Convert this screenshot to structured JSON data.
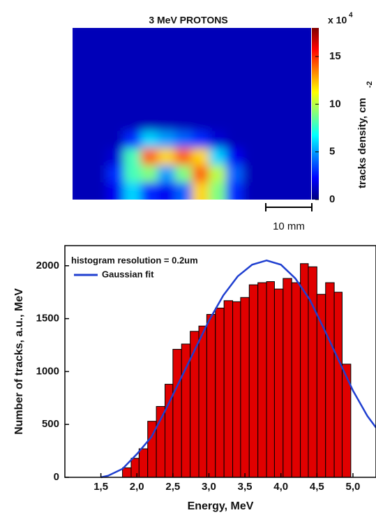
{
  "chart_data": [
    {
      "type": "heatmap",
      "title": "3 MeV PROTONS",
      "colormap": "jet",
      "values": [
        [
          1,
          1,
          1,
          1,
          1,
          1,
          1,
          1,
          1,
          1,
          1,
          1,
          1,
          1
        ],
        [
          1,
          1,
          1,
          1,
          1,
          1,
          1,
          1,
          1,
          1,
          1,
          1,
          1,
          1
        ],
        [
          1,
          1,
          1,
          1,
          1,
          1,
          1,
          1,
          1,
          1,
          1,
          1,
          1,
          1
        ],
        [
          1,
          1,
          1,
          1,
          1,
          1,
          1,
          1,
          1,
          1,
          1,
          1,
          1,
          1
        ],
        [
          1,
          1,
          1,
          1,
          1,
          1,
          1,
          1,
          1,
          1,
          1,
          1,
          1,
          1
        ],
        [
          1,
          1,
          1,
          1,
          1,
          1,
          1,
          1,
          1,
          1,
          1,
          1,
          1,
          1
        ],
        [
          1,
          1,
          1,
          3,
          6,
          5,
          4,
          3,
          1.5,
          1,
          1,
          1,
          1,
          1
        ],
        [
          1,
          1,
          1.5,
          8,
          14,
          12,
          14,
          12,
          6,
          2,
          1,
          1,
          1,
          1
        ],
        [
          1,
          1,
          3,
          8,
          9,
          5,
          9,
          14,
          10,
          4,
          1,
          1,
          1,
          1
        ],
        [
          1,
          1,
          2,
          6,
          3,
          2,
          4,
          12,
          9,
          3,
          1,
          1,
          1,
          1
        ]
      ],
      "zlim": [
        0,
        18
      ],
      "zticks": [
        0,
        5,
        10,
        15
      ],
      "colorbar_scale": "x 10",
      "colorbar_scale_exponent": "4",
      "colorbar_label": "tracks density, cm",
      "colorbar_label_exponent": "-2",
      "scale_bar": "10 mm"
    },
    {
      "type": "histogram",
      "annotation": "histogram resolution = 0.2um",
      "xlabel": "Energy, MeV",
      "ylabel": "Number of tracks, a.u., MeV",
      "color": "#e00000",
      "bins": [
        1.8,
        1.92,
        2.03,
        2.15,
        2.27,
        2.39,
        2.5,
        2.62,
        2.74,
        2.86,
        2.97,
        3.09,
        3.21,
        3.33,
        3.44,
        3.56,
        3.68,
        3.8,
        3.91,
        4.03,
        4.15,
        4.27,
        4.38,
        4.5,
        4.62,
        4.74,
        4.85,
        4.97
      ],
      "values": [
        90,
        180,
        270,
        530,
        670,
        880,
        1210,
        1260,
        1380,
        1430,
        1540,
        1600,
        1670,
        1660,
        1700,
        1820,
        1840,
        1850,
        1780,
        1880,
        1840,
        2020,
        1990,
        1730,
        1840,
        1750,
        1070
      ],
      "fit": {
        "name": "Gaussian fit",
        "color": "#1f3fd0",
        "x": [
          1.5,
          1.6,
          1.8,
          2.0,
          2.2,
          2.4,
          2.6,
          2.8,
          3.0,
          3.2,
          3.4,
          3.6,
          3.8,
          4.0,
          4.2,
          4.4,
          4.6,
          4.8,
          5.0,
          5.2,
          5.32
        ],
        "values": [
          0,
          15,
          80,
          220,
          380,
          640,
          920,
          1200,
          1480,
          1720,
          1900,
          2010,
          2050,
          2010,
          1880,
          1680,
          1400,
          1110,
          820,
          580,
          470
        ]
      },
      "xlim": [
        1.0,
        5.32
      ],
      "xticks": [
        {
          "value": 1.5,
          "label": "1,5"
        },
        {
          "value": 2.0,
          "label": "2,0"
        },
        {
          "value": 2.5,
          "label": "2,5"
        },
        {
          "value": 3.0,
          "label": "3,0"
        },
        {
          "value": 3.5,
          "label": "3,5"
        },
        {
          "value": 4.0,
          "label": "4,0"
        },
        {
          "value": 4.5,
          "label": "4,5"
        },
        {
          "value": 5.0,
          "label": "5,0"
        }
      ],
      "ylim": [
        0,
        2190
      ],
      "yticks": [
        0,
        500,
        1000,
        1500,
        2000
      ]
    }
  ]
}
